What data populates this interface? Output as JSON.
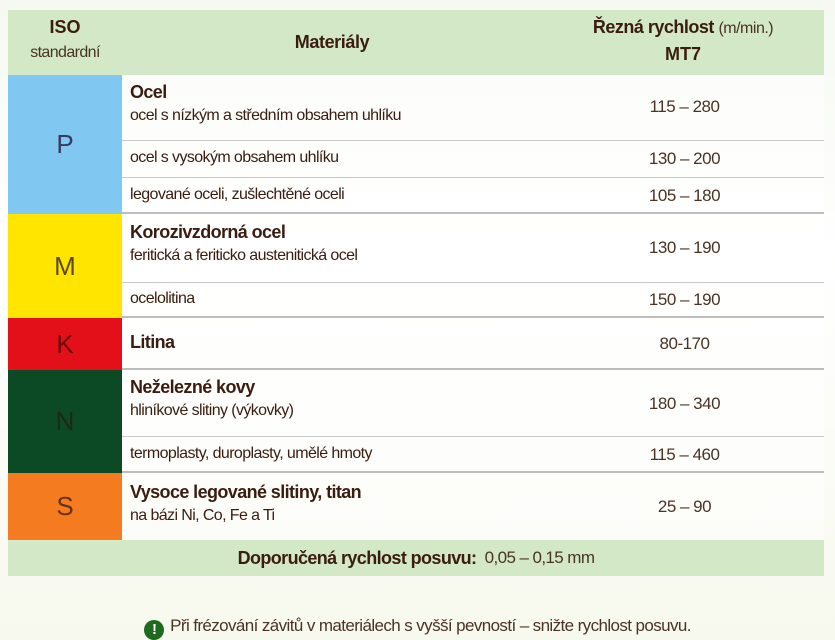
{
  "header": {
    "iso": "ISO",
    "iso_sub": "standardní",
    "materials": "Materiály",
    "speed": "Řezná rychlost",
    "speed_unit": "(m/min.)",
    "tool": "MT7"
  },
  "groups": [
    {
      "code": "P",
      "color": "#80c7f1",
      "rows": [
        {
          "title": "Ocel",
          "material": "ocel s nízkým a středním obsahem uhlíku",
          "speed": "115 – 280"
        },
        {
          "material": "ocel s vysokým obsahem uhlíku",
          "speed": "130 – 200"
        },
        {
          "material": "legované oceli, zušlechtěné oceli",
          "speed": "105 – 180"
        }
      ]
    },
    {
      "code": "M",
      "color": "#ffe500",
      "rows": [
        {
          "title": "Korozivzdorná ocel",
          "material": "feritická a feriticko austenitická ocel",
          "speed": "130 – 190"
        },
        {
          "material": "ocelolitina",
          "speed": "150 – 190"
        }
      ]
    },
    {
      "code": "K",
      "color": "#e3101a",
      "rows": [
        {
          "title": "Litina",
          "speed": "80-170"
        }
      ]
    },
    {
      "code": "N",
      "color": "#0c4a26",
      "rows": [
        {
          "title": "Neželezné kovy",
          "material": "hliníkové slitiny (výkovky)",
          "speed": "180 – 340"
        },
        {
          "material": "termoplasty, duroplasty, umělé hmoty",
          "speed": "115 – 460"
        }
      ]
    },
    {
      "code": "S",
      "color": "#f47b20",
      "rows": [
        {
          "title": "Vysoce legované slitiny, titan",
          "material": "na bázi Ni, Co, Fe a Ti",
          "speed": "25 – 90"
        }
      ]
    }
  ],
  "footer": {
    "label": "Doporučená rychlost posuvu:",
    "value": "0,05 – 0,15 mm"
  },
  "note": {
    "icon": "exclamation-icon",
    "text": "Při frézování závitů v materiálech s vyšší pevností – snižte rychlost posuvu."
  }
}
